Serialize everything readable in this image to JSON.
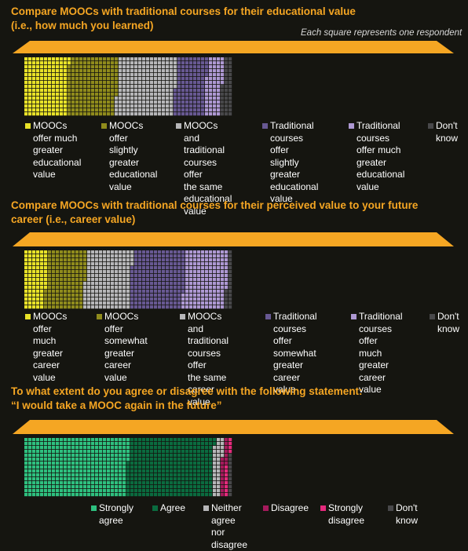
{
  "note": "Each square represents one respondent",
  "chart_data": [
    {
      "type": "waffle",
      "title": "Compare MOOCs with traditional courses for their educational value\n(i.e., how much you learned)",
      "categories": [
        "MOOCs\noffer much\ngreater\neducational\nvalue",
        "MOOCs\noffer slightly\ngreater\neducational\nvalue",
        "MOOCs and\ntraditional\ncourses offer\nthe same\neducational value",
        "Traditional\ncourses\noffer slightly\ngreater\neducational value",
        "Traditional\ncourses\noffer much\ngreater\neducational value",
        "Don't\nknow"
      ],
      "values": [
        0.21,
        0.236,
        0.281,
        0.147,
        0.078,
        0.048
      ],
      "colors": [
        "#e8e228",
        "#8f8b1c",
        "#b6b6b8",
        "#675892",
        "#ad98d2",
        "#48484a"
      ]
    },
    {
      "type": "waffle",
      "title": "Compare MOOCs with traditional courses for their perceived value to your future\ncareer (i.e., career value)",
      "categories": [
        "MOOCs\noffer much\ngreater\ncareer value",
        "MOOCs\noffer somewhat\ngreater\ncareer value",
        "MOOCs and\ntraditional\ncourses offer\nthe same\ncareer value",
        "Traditional\ncourses\noffer somewhat\ngreater\ncareer value",
        "Traditional\ncourses\noffer much\ngreater\ncareer value",
        "Don't\nknow"
      ],
      "values": [
        0.107,
        0.186,
        0.222,
        0.254,
        0.206,
        0.025
      ],
      "colors": [
        "#e8e228",
        "#8f8b1c",
        "#b6b6b8",
        "#675892",
        "#ad98d2",
        "#48484a"
      ]
    },
    {
      "type": "waffle",
      "title": "To what extent do you agree or disagree with the following statement:\n“I would take a MOOC again in the future”",
      "categories": [
        "Strongly\nagree",
        "Agree",
        "Neither\nagree nor\ndisagree",
        "Disagree",
        "Strongly\ndisagree",
        "Don't\nknow"
      ],
      "values": [
        0.499,
        0.41,
        0.041,
        0.021,
        0.015,
        0.014
      ],
      "colors": [
        "#2ec07f",
        "#0a6b3f",
        "#b6b6b8",
        "#a51a5c",
        "#e42a7c",
        "#48484a"
      ]
    }
  ]
}
